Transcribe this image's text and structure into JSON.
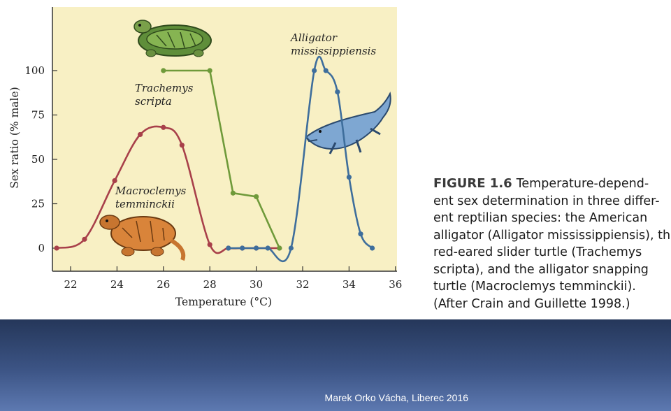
{
  "chart_data": {
    "type": "line",
    "xlabel": "Temperature (°C)",
    "ylabel": "Sex ratio (% male)",
    "xlim": [
      21,
      36
    ],
    "ylim": [
      -15,
      122
    ],
    "x_ticks": [
      "22",
      "24",
      "26",
      "28",
      "30",
      "32",
      "34",
      "36"
    ],
    "y_ticks": [
      "0",
      "25",
      "50",
      "75",
      "100"
    ],
    "grid": false,
    "background_color": "#f8f0c4",
    "series": [
      {
        "name": "Macroclemys temminckii",
        "label_lines": [
          "Macroclemys",
          "temminckii"
        ],
        "color": "#a8404a",
        "x": [
          21.4,
          22.6,
          23.9,
          25.0,
          26.0,
          26.8,
          28.0,
          28.8,
          29.4,
          30.0,
          31.0
        ],
        "y": [
          0,
          5,
          38,
          64,
          68,
          58,
          2,
          0,
          0,
          0,
          0
        ]
      },
      {
        "name": "Trachemys scripta",
        "label_lines": [
          "Trachemys",
          "scripta"
        ],
        "color": "#6f9a3a",
        "x": [
          26.0,
          28.0,
          29.0,
          30.0,
          31.0
        ],
        "y": [
          100,
          100,
          31,
          29,
          0
        ]
      },
      {
        "name": "Alligator mississippiensis",
        "label_lines": [
          "Alligator",
          "mississippiensis"
        ],
        "color": "#3e6e9c",
        "x": [
          28.8,
          29.4,
          30.0,
          30.5,
          31.5,
          32.5,
          33.0,
          33.5,
          34.0,
          34.5,
          35.0
        ],
        "y": [
          0,
          0,
          0,
          0,
          0,
          100,
          100,
          88,
          40,
          8,
          0
        ]
      }
    ]
  },
  "caption": {
    "figure_label": "FIGURE 1.6",
    "lines": [
      "Temperature-depend-",
      "ent sex determination in three differ-",
      "ent reptilian species: the American",
      "alligator (Alligator mississippiensis), the",
      "red-eared slider turtle (Trachemys",
      "scripta), and the alligator snapping",
      "turtle (Macroclemys temminckii).",
      "(After Crain and Guillette 1998.)"
    ]
  },
  "footer": {
    "text": "Marek Orko Vácha, Liberec 2016"
  },
  "colors": {
    "footer_gradient_top": "#25375a",
    "footer_gradient_bottom": "#5d79b1"
  }
}
